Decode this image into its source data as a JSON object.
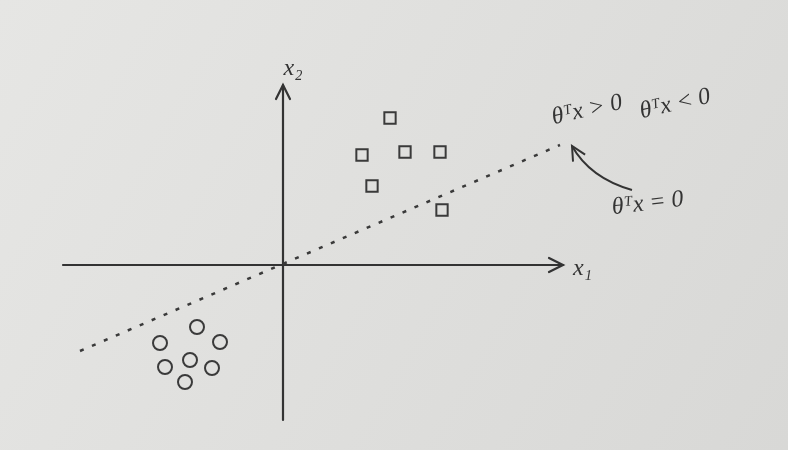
{
  "chart_data": {
    "type": "scatter",
    "x_label": "x₁",
    "y_label": "x₂",
    "xlim": [
      -2.2,
      2.8
    ],
    "ylim": [
      -1.55,
      1.8
    ],
    "tick_labels": false,
    "grid": false,
    "annotations": [
      "θᵀx > 0",
      "θᵀx < 0",
      "θᵀx = 0"
    ],
    "series": [
      {
        "marker": "square",
        "color": "#3a3a3a",
        "x": [
          1.07,
          0.79,
          1.22,
          1.57,
          0.89,
          1.59
        ],
        "values": [
          1.47,
          1.1,
          1.13,
          1.13,
          0.79,
          0.55
        ]
      },
      {
        "marker": "circle",
        "color": "#3a3a3a",
        "x": [
          -1.23,
          -0.86,
          -0.63,
          -1.18,
          -0.93,
          -0.71,
          -0.98
        ],
        "values": [
          -0.78,
          -0.62,
          -0.77,
          -1.02,
          -0.95,
          -1.03,
          -1.17
        ]
      },
      {
        "type": "line",
        "line_style": "dashed",
        "color": "#3a3a3a",
        "x": [
          -2.03,
          2.77
        ],
        "values": [
          -0.86,
          1.2
        ]
      }
    ]
  }
}
